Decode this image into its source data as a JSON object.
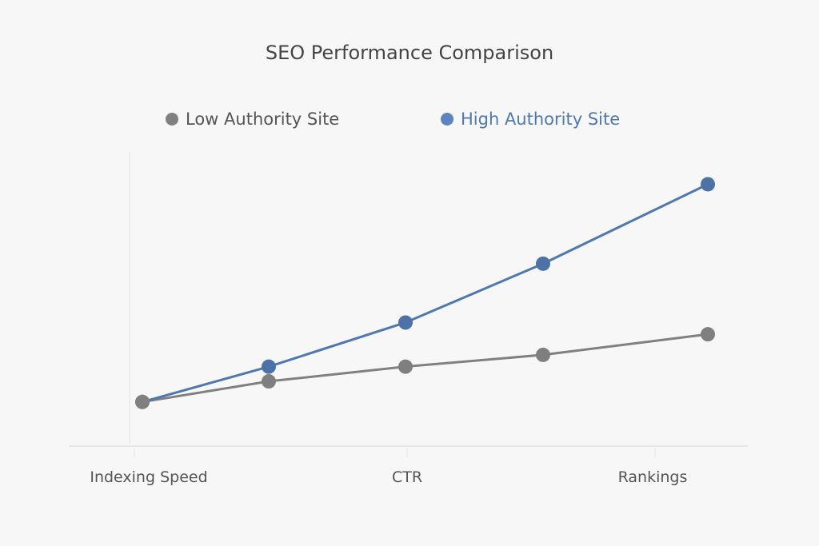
{
  "chart_data": {
    "type": "line",
    "title": "SEO Performance Comparison",
    "xlabel": "",
    "ylabel": "",
    "categories": [
      "Indexing Speed",
      "",
      "CTR",
      "",
      "Rankings"
    ],
    "tick_labels": [
      "Indexing Speed",
      "CTR",
      "Rankings"
    ],
    "ylim": [
      0,
      100
    ],
    "grid": false,
    "legend_position": "top",
    "series": [
      {
        "name": "Low Authority Site",
        "color": "#808080",
        "values": [
          15,
          22,
          27,
          31,
          38
        ]
      },
      {
        "name": "High Authority Site",
        "color": "#4f78b0",
        "values": [
          15,
          27,
          42,
          62,
          89
        ]
      }
    ]
  }
}
